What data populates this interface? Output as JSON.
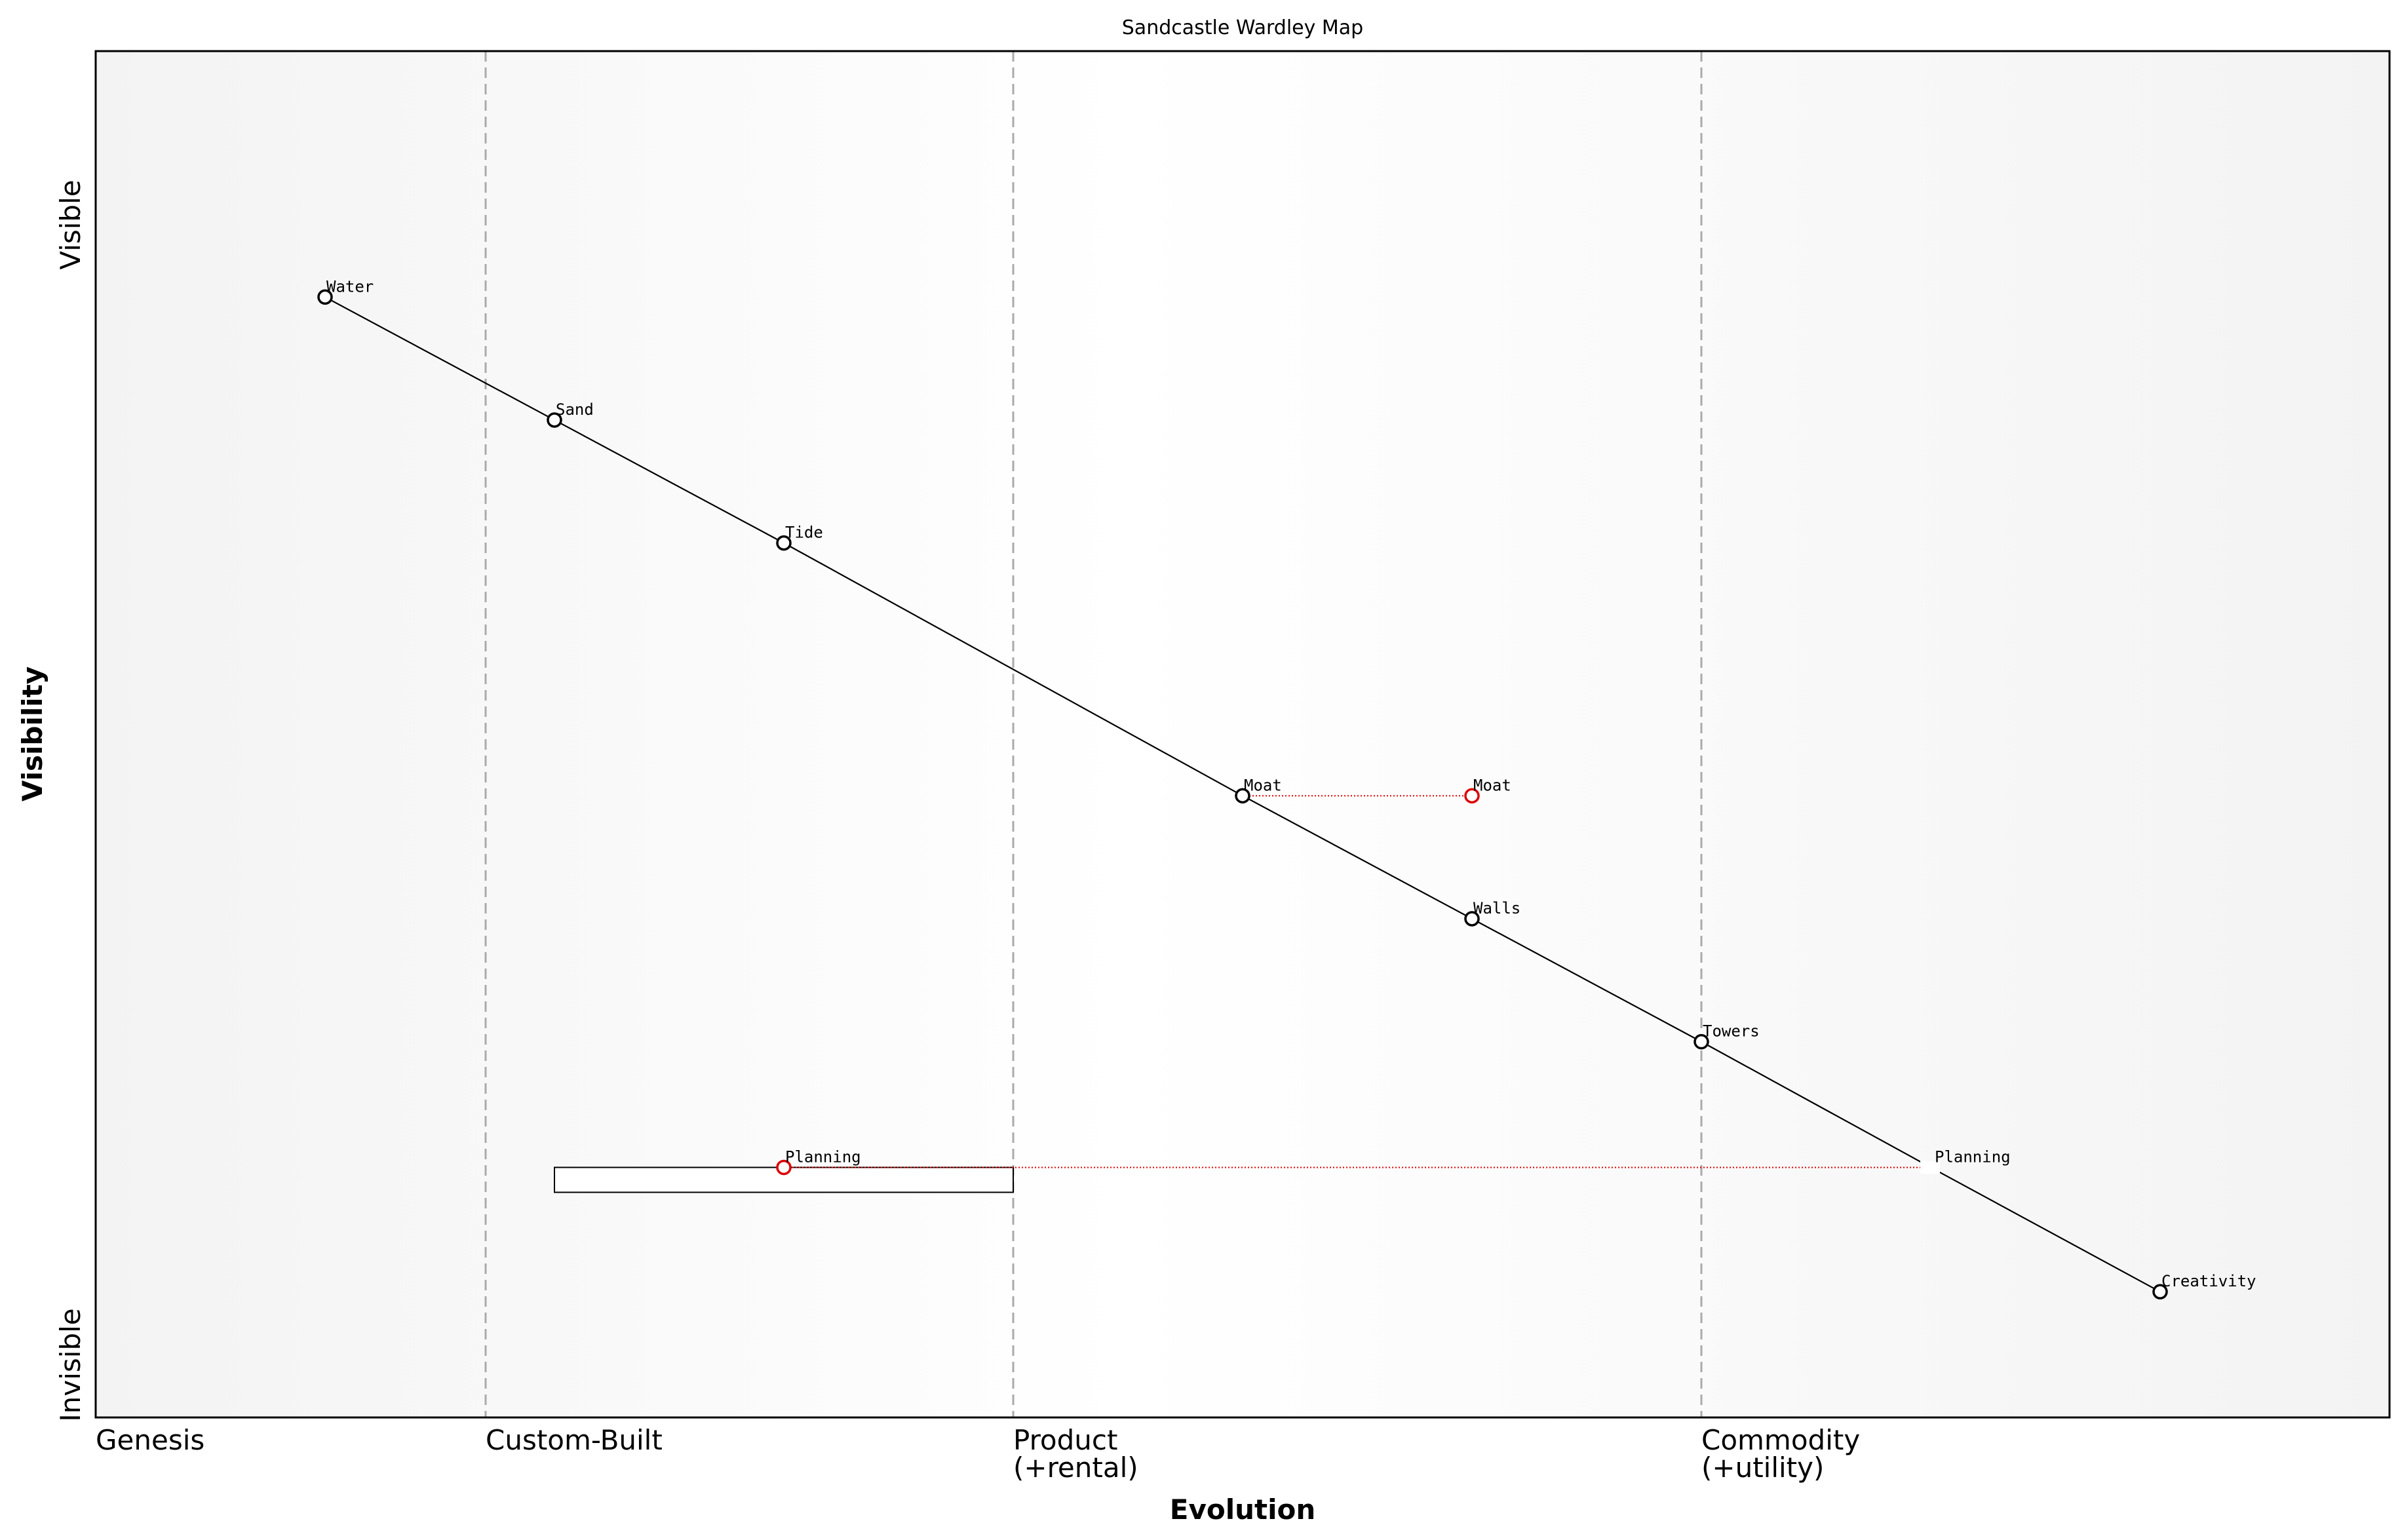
{
  "title": "Sandcastle Wardley Map",
  "axes": {
    "x_label": "Evolution",
    "y_label": "Visibility",
    "y_top": "Visible",
    "y_bottom": "Invisible"
  },
  "stages": [
    {
      "id": "genesis",
      "lines": [
        "Genesis"
      ],
      "x": 0.0
    },
    {
      "id": "custom-built",
      "lines": [
        "Custom-Built"
      ],
      "x": 0.17
    },
    {
      "id": "product",
      "lines": [
        "Product",
        "(+rental)"
      ],
      "x": 0.4
    },
    {
      "id": "commodity",
      "lines": [
        "Commodity",
        "(+utility)"
      ],
      "x": 0.7
    }
  ],
  "colors": {
    "node_stroke": "#000000",
    "evolve_stroke": "#dd0000",
    "divider": "#aaaaaa",
    "bg_edge": "#f3f3f3",
    "bg_mid": "#ffffff"
  },
  "chart_data": {
    "type": "wardley-map",
    "xlim": [
      0,
      1
    ],
    "ylim": [
      0,
      1
    ],
    "components": [
      {
        "name": "Water",
        "evolution": 0.1,
        "visibility": 0.82
      },
      {
        "name": "Sand",
        "evolution": 0.2,
        "visibility": 0.73
      },
      {
        "name": "Tide",
        "evolution": 0.3,
        "visibility": 0.64
      },
      {
        "name": "Moat",
        "evolution": 0.5,
        "visibility": 0.455
      },
      {
        "name": "Walls",
        "evolution": 0.6,
        "visibility": 0.365
      },
      {
        "name": "Towers",
        "evolution": 0.7,
        "visibility": 0.275
      },
      {
        "name": "Planning",
        "evolution": 0.8,
        "visibility": 0.183,
        "no_marker": true
      },
      {
        "name": "Creativity",
        "evolution": 0.9,
        "visibility": 0.092
      }
    ],
    "links": [
      [
        "Water",
        "Sand"
      ],
      [
        "Sand",
        "Tide"
      ],
      [
        "Tide",
        "Moat"
      ],
      [
        "Moat",
        "Walls"
      ],
      [
        "Walls",
        "Towers"
      ],
      [
        "Towers",
        "Planning"
      ],
      [
        "Planning",
        "Creativity"
      ]
    ],
    "evolutions": [
      {
        "name": "Moat",
        "from": 0.5,
        "to": 0.6,
        "visibility": 0.455
      },
      {
        "name": "Planning",
        "from": 0.8,
        "to": 0.3,
        "visibility": 0.183
      }
    ],
    "pipelines": [
      {
        "name": "Planning",
        "start": 0.2,
        "end": 0.4,
        "visibility": 0.183
      }
    ]
  }
}
